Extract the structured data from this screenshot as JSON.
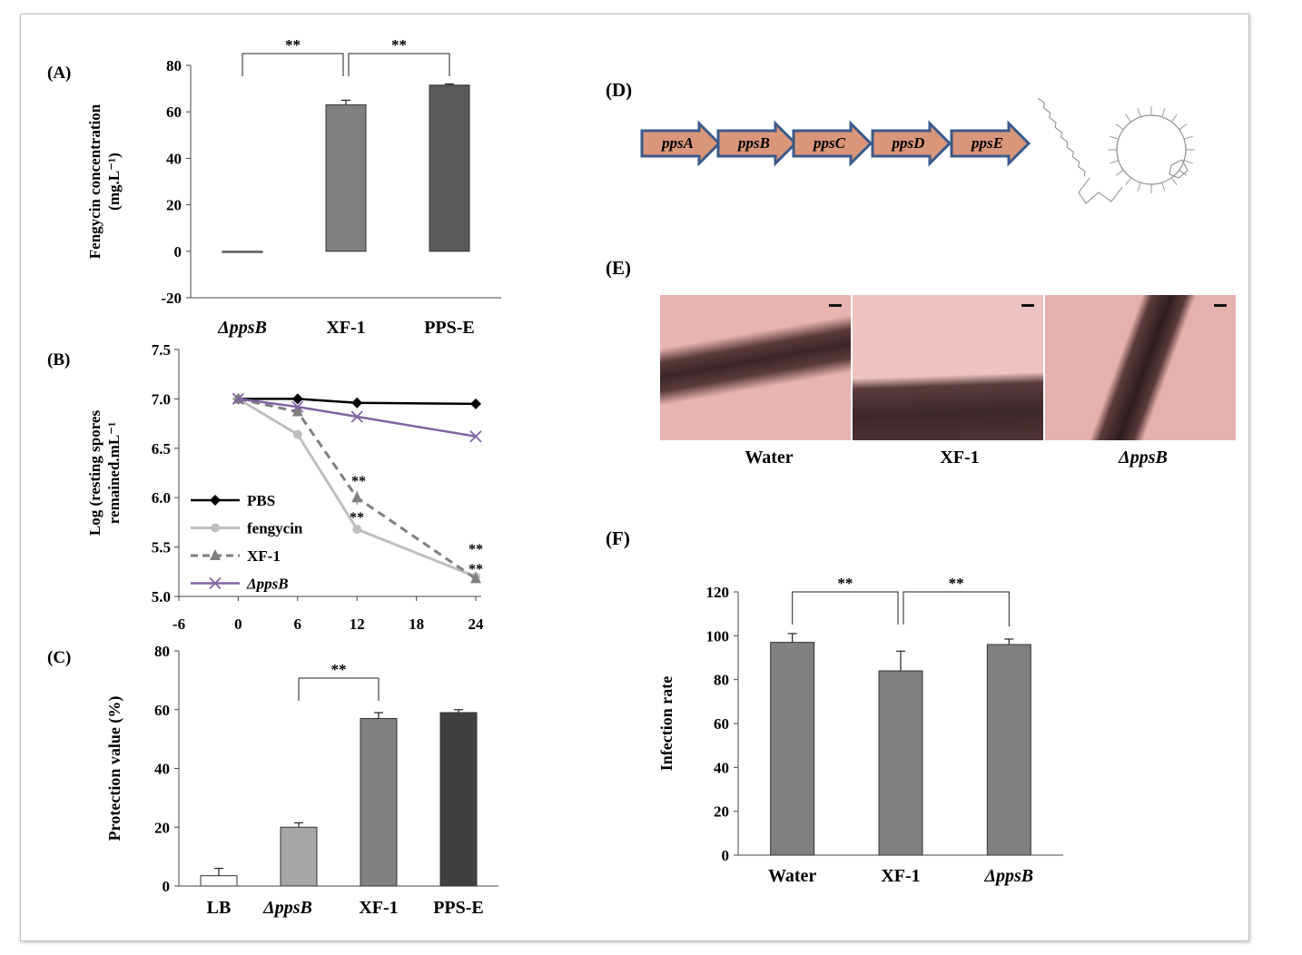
{
  "panel_labels": {
    "A": "(A)",
    "B": "(B)",
    "C": "(C)",
    "D": "(D)",
    "E": "(E)",
    "F": "(F)"
  },
  "significance": "**",
  "colors": {
    "bar_light": "#d9d9d9",
    "bar_mid": "#808080",
    "bar_dark": "#595959",
    "bar_darkest": "#404040",
    "line_pbs": "#000000",
    "line_fengycin": "#bfbfbf",
    "line_xf1": "#7f7f7f",
    "line_appsb": "#8064a2",
    "gene_fill": "#d9967a",
    "gene_stroke": "#3b5a8a"
  },
  "chart_data": [
    {
      "id": "A",
      "type": "bar",
      "categories": [
        "ΔppsB",
        "XF-1",
        "PPS-E"
      ],
      "values": [
        -0.5,
        63,
        71.5
      ],
      "errors": [
        0,
        2,
        0.5
      ],
      "ylabel_line1": "Fengycin concentration",
      "ylabel_line2": "(mg.L⁻¹)",
      "ylim": [
        -20,
        80
      ],
      "yticks": [
        "80",
        "60",
        "40",
        "20",
        "0",
        "-20"
      ],
      "significance_pairs": [
        [
          "ΔppsB",
          "XF-1"
        ],
        [
          "XF-1",
          "PPS-E"
        ]
      ]
    },
    {
      "id": "B",
      "type": "line",
      "x": [
        0,
        6,
        12,
        24
      ],
      "xticks": [
        "-6",
        "0",
        "6",
        "12",
        "18",
        "24"
      ],
      "yticks": [
        "7.5",
        "7.0",
        "6.5",
        "6.0",
        "5.5",
        "5.0"
      ],
      "ylim": [
        5.0,
        7.5
      ],
      "xlim": [
        -6,
        24
      ],
      "ylabel_line1": "Log (resting spores",
      "ylabel_line2": "remained.mL⁻¹",
      "legend_position": "lower-left",
      "series": [
        {
          "name": "PBS",
          "values": [
            7.0,
            7.0,
            6.96,
            6.95
          ],
          "marker": "diamond",
          "dash": false
        },
        {
          "name": "fengycin",
          "values": [
            7.0,
            6.64,
            5.68,
            5.2
          ],
          "marker": "circle",
          "dash": false
        },
        {
          "name": "XF-1",
          "values": [
            7.0,
            6.87,
            6.0,
            5.18
          ],
          "marker": "triangle",
          "dash": true
        },
        {
          "name": "ΔppsB",
          "values": [
            7.0,
            6.92,
            6.82,
            6.62
          ],
          "marker": "x",
          "dash": false
        }
      ],
      "annotations": [
        "**",
        "**",
        "**",
        "**"
      ]
    },
    {
      "id": "C",
      "type": "bar",
      "categories": [
        "LB",
        "ΔppsB",
        "XF-1",
        "PPS-E"
      ],
      "values": [
        3.5,
        20,
        57,
        59
      ],
      "errors": [
        2.5,
        1.5,
        2,
        1
      ],
      "ylabel": "Protection value (%)",
      "ylim": [
        0,
        80
      ],
      "yticks": [
        "80",
        "60",
        "40",
        "20",
        "0"
      ],
      "significance_pairs": [
        [
          "ΔppsB",
          "XF-1"
        ]
      ]
    },
    {
      "id": "F",
      "type": "bar",
      "categories": [
        "Water",
        "XF-1",
        "ΔppsB"
      ],
      "values": [
        97,
        84,
        96
      ],
      "errors": [
        4,
        9,
        2.5
      ],
      "ylabel": "Infection rate",
      "ylim": [
        0,
        120
      ],
      "yticks": [
        "120",
        "100",
        "80",
        "60",
        "40",
        "20",
        "0"
      ],
      "significance_pairs": [
        [
          "Water",
          "XF-1"
        ],
        [
          "XF-1",
          "ΔppsB"
        ]
      ]
    }
  ],
  "operon": {
    "genes": [
      "ppsA",
      "ppsB",
      "ppsC",
      "ppsD",
      "ppsE"
    ]
  },
  "micrographs": {
    "labels": [
      "Water",
      "XF-1",
      "ΔppsB"
    ]
  }
}
